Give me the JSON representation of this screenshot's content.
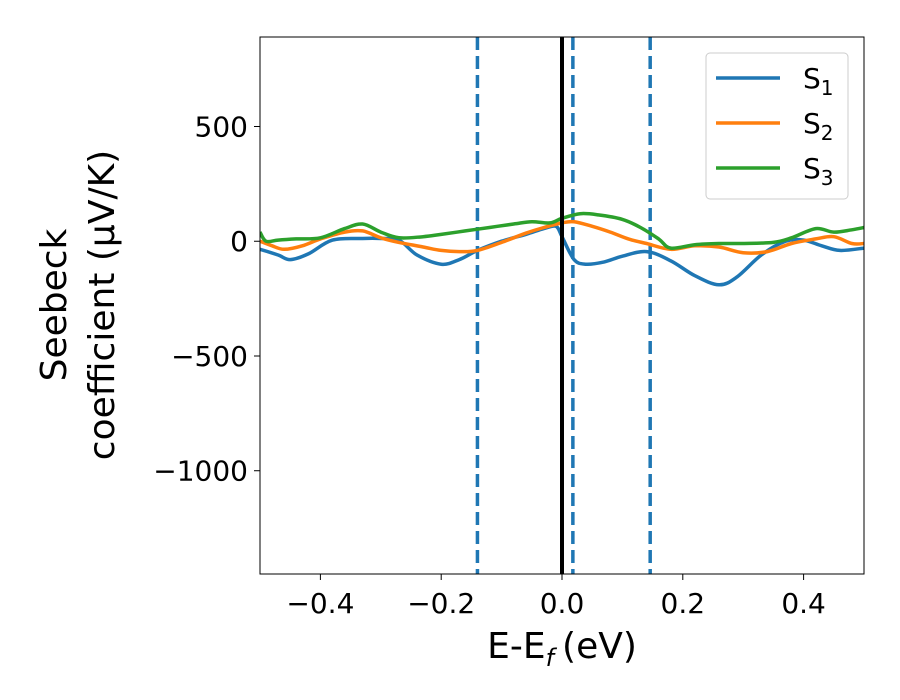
{
  "chart_data": {
    "type": "line",
    "xlabel": "E-E",
    "xlabel_sub": "f",
    "xlabel_unit": "(eV)",
    "ylabel_line1": "Seebeck",
    "ylabel_line2": "coefficient  (μV/K)",
    "xlim": [
      -0.5,
      0.5
    ],
    "ylim": [
      -1450,
      890
    ],
    "xticks": [
      -0.4,
      -0.2,
      0.0,
      0.2,
      0.4
    ],
    "xtick_labels": [
      "−0.4",
      "−0.2",
      "0.0",
      "0.2",
      "0.4"
    ],
    "yticks": [
      500,
      0,
      -500,
      -1000
    ],
    "ytick_labels": [
      "500",
      "0",
      "−500",
      "−1000"
    ],
    "grid": false,
    "legend_position": "top-right",
    "vertical_lines": [
      {
        "x": 0.0,
        "style": "solid",
        "color": "#000000"
      },
      {
        "x": -0.14,
        "style": "dashed",
        "color": "#1f77b4"
      },
      {
        "x": 0.018,
        "style": "dashed",
        "color": "#1f77b4"
      },
      {
        "x": 0.146,
        "style": "dashed",
        "color": "#1f77b4"
      }
    ],
    "series": [
      {
        "name": "S",
        "name_sub": "1",
        "color": "#1f77b4",
        "x": [
          -0.5,
          -0.47,
          -0.45,
          -0.42,
          -0.38,
          -0.33,
          -0.3,
          -0.27,
          -0.24,
          -0.2,
          -0.17,
          -0.14,
          -0.1,
          -0.06,
          -0.03,
          -0.01,
          0.0,
          0.02,
          0.04,
          0.07,
          0.1,
          0.14,
          0.18,
          0.22,
          0.26,
          0.29,
          0.33,
          0.37,
          0.4,
          0.43,
          0.46,
          0.5
        ],
        "y": [
          -35,
          -60,
          -80,
          -55,
          5,
          12,
          12,
          5,
          -60,
          -100,
          -80,
          -40,
          0,
          30,
          55,
          65,
          20,
          -80,
          -100,
          -90,
          -65,
          -45,
          -85,
          -150,
          -190,
          -155,
          -60,
          0,
          5,
          -20,
          -40,
          -30
        ]
      },
      {
        "name": "S",
        "name_sub": "2",
        "color": "#ff7f0e",
        "x": [
          -0.5,
          -0.48,
          -0.46,
          -0.43,
          -0.4,
          -0.36,
          -0.33,
          -0.3,
          -0.27,
          -0.23,
          -0.2,
          -0.17,
          -0.14,
          -0.1,
          -0.06,
          -0.03,
          0.0,
          0.02,
          0.05,
          0.08,
          0.11,
          0.14,
          0.18,
          0.22,
          0.26,
          0.3,
          0.34,
          0.38,
          0.42,
          0.45,
          0.48,
          0.5
        ],
        "y": [
          0,
          -20,
          -35,
          -20,
          10,
          40,
          45,
          15,
          -5,
          -25,
          -40,
          -45,
          -40,
          -5,
          35,
          60,
          80,
          85,
          65,
          40,
          10,
          -10,
          -35,
          -20,
          -25,
          -50,
          -45,
          -10,
          10,
          20,
          -10,
          -10
        ]
      },
      {
        "name": "S",
        "name_sub": "3",
        "color": "#2ca02c",
        "x": [
          -0.5,
          -0.49,
          -0.47,
          -0.44,
          -0.4,
          -0.36,
          -0.33,
          -0.3,
          -0.27,
          -0.23,
          -0.2,
          -0.16,
          -0.12,
          -0.08,
          -0.05,
          -0.02,
          0.0,
          0.03,
          0.06,
          0.1,
          0.13,
          0.16,
          0.18,
          0.22,
          0.26,
          0.3,
          0.35,
          0.38,
          0.42,
          0.45,
          0.48,
          0.5
        ],
        "y": [
          40,
          0,
          5,
          10,
          15,
          55,
          75,
          40,
          15,
          20,
          30,
          45,
          60,
          75,
          85,
          80,
          100,
          120,
          115,
          95,
          60,
          10,
          -30,
          -15,
          -10,
          -10,
          -5,
          15,
          55,
          40,
          50,
          60
        ]
      }
    ]
  }
}
